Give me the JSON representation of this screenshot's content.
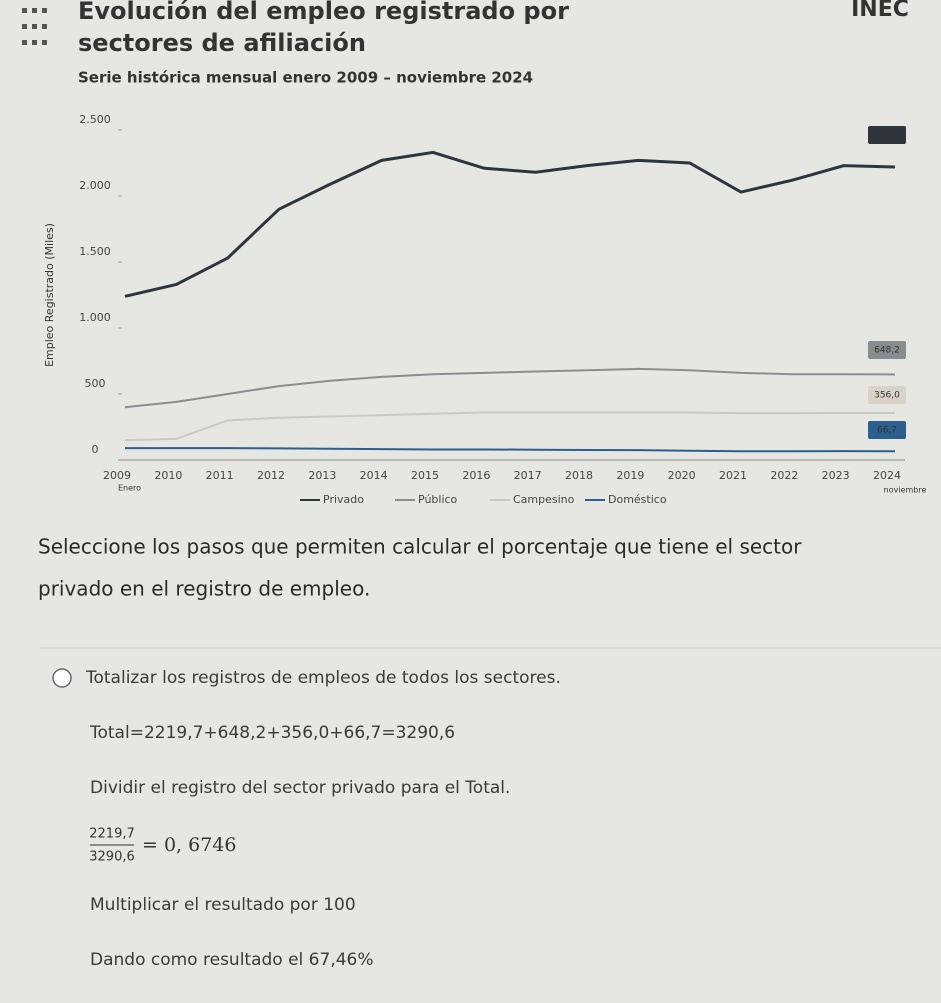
{
  "header": {
    "logo": "INEC"
  },
  "chart_data": {
    "type": "line",
    "title": [
      "Evolución del empleo registrado por",
      "sectores de afiliación"
    ],
    "subtitle": "Serie histórica mensual enero 2009 – noviembre 2024",
    "y_label": "Empleo Registrado (Miles)",
    "x_start_label": "Enero",
    "x_end_label": "noviembre",
    "categories": [
      "2009",
      "2010",
      "2011",
      "2012",
      "2013",
      "2014",
      "2015",
      "2016",
      "2017",
      "2018",
      "2019",
      "2020",
      "2021",
      "2022",
      "2023",
      "2024"
    ],
    "ylim": [
      0,
      2500
    ],
    "yticks": [
      0,
      500,
      {
        "value": 1000,
        "label": "1.000"
      },
      {
        "value": 1500,
        "label": "1.500"
      },
      {
        "value": 2000,
        "label": "2.000"
      },
      {
        "value": 2500,
        "label": "2.500"
      }
    ],
    "grid": false,
    "series": [
      {
        "name": "Privado",
        "color": "#2f353d",
        "values": [
          1240,
          1330,
          1530,
          1900,
          2090,
          2270,
          2330,
          2210,
          2180,
          2230,
          2270,
          2250,
          2030,
          2120,
          2230,
          2219.7
        ],
        "value_labels": [
          null,
          null,
          null,
          null,
          null,
          null,
          null,
          null,
          null,
          null,
          null,
          null,
          null,
          null,
          null,
          "2.219,7"
        ]
      },
      {
        "name": "Público",
        "color": "#8a8d90",
        "values": [
          400,
          440,
          500,
          560,
          600,
          630,
          650,
          660,
          670,
          680,
          690,
          680,
          660,
          650,
          650,
          648.2
        ],
        "value_labels": [
          null,
          null,
          null,
          null,
          null,
          null,
          null,
          null,
          null,
          null,
          null,
          null,
          null,
          null,
          null,
          "648,2"
        ]
      },
      {
        "name": "Campesino",
        "color": "#c9c9c6",
        "values": [
          150,
          160,
          300,
          320,
          330,
          340,
          350,
          360,
          360,
          360,
          360,
          360,
          355,
          355,
          356,
          356.0
        ],
        "value_labels": [
          null,
          null,
          null,
          null,
          null,
          null,
          null,
          null,
          null,
          null,
          null,
          null,
          null,
          null,
          null,
          "356,0"
        ]
      },
      {
        "name": "Doméstico",
        "color": "#2d5f8e",
        "values": [
          90,
          90,
          90,
          88,
          85,
          82,
          80,
          80,
          78,
          76,
          75,
          70,
          66,
          66,
          67,
          66.7
        ],
        "value_labels": [
          null,
          null,
          null,
          null,
          null,
          null,
          null,
          null,
          null,
          null,
          null,
          null,
          null,
          null,
          null,
          "66,7"
        ]
      }
    ]
  },
  "question": {
    "lines": [
      "Seleccione los pasos que permiten calcular el porcentaje que tiene el sector",
      "privado en el registro de empleo."
    ],
    "option": "Totalizar los registros de empleos de todos los sectores."
  },
  "steps": {
    "total": "Total=2219,7+648,2+356,0+66,7=3290,6",
    "divide": "Dividir el registro del sector privado para el Total.",
    "fraction": {
      "numerator": "2219,7",
      "denominator": "3290,6",
      "result": "= 0, 6746"
    },
    "multiply": "Multiplicar el resultado por 100",
    "result": "Dando como resultado el 67,46%"
  }
}
